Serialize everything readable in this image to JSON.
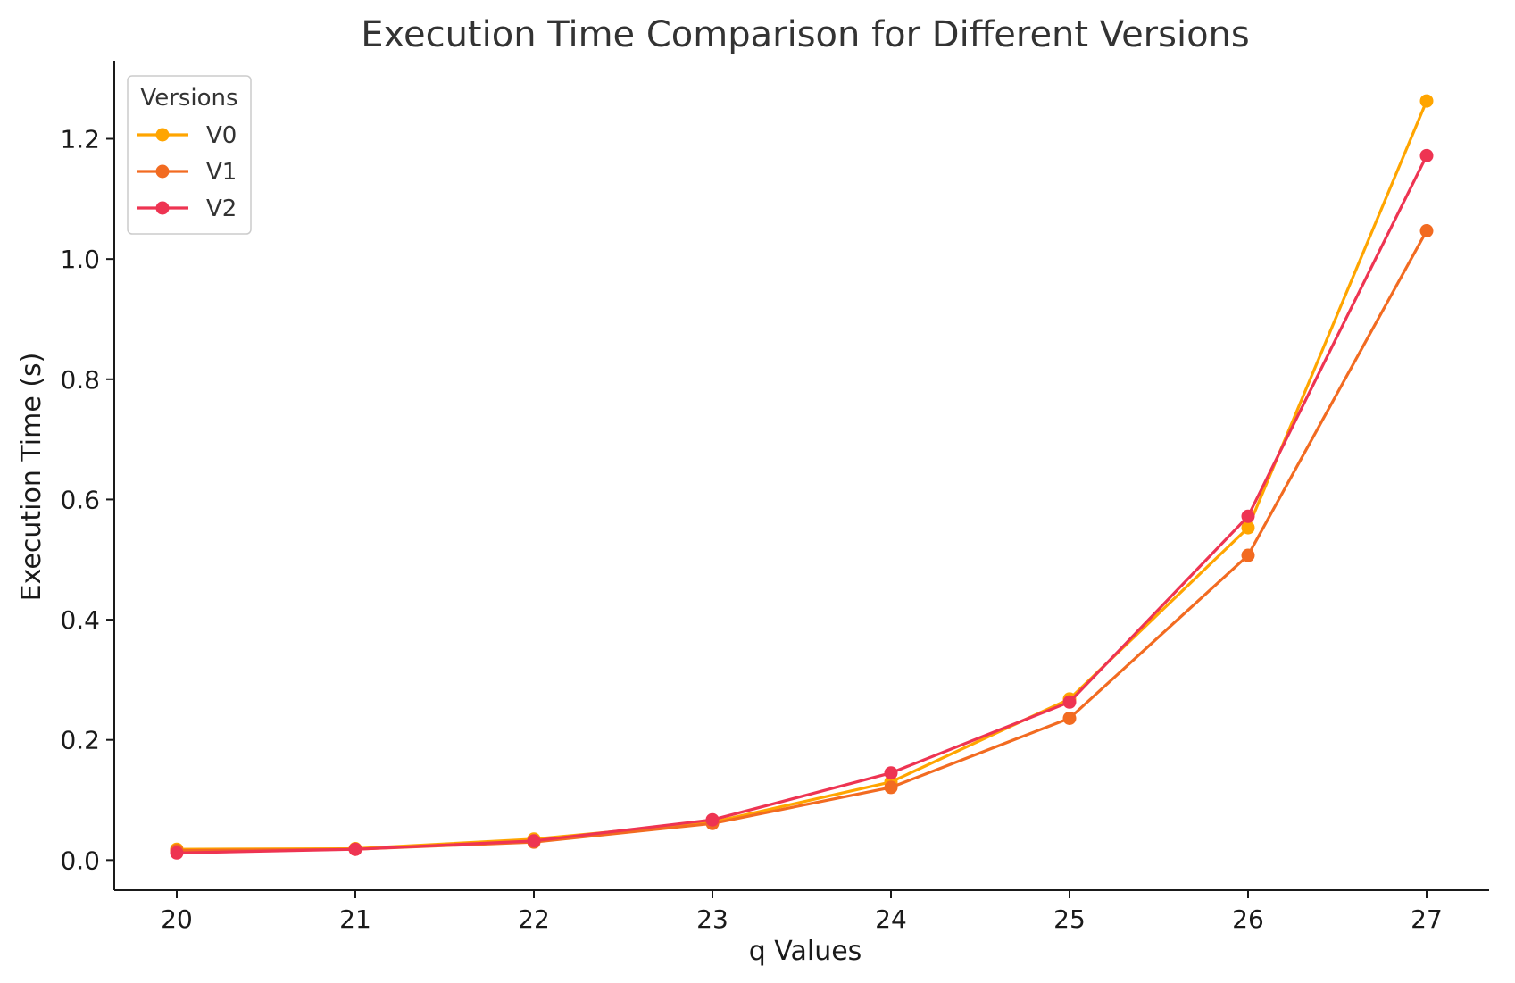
{
  "chart_data": {
    "type": "line",
    "title": "Execution Time Comparison for Different Versions",
    "xlabel": "q Values",
    "ylabel": "Execution Time (s)",
    "x": [
      20,
      21,
      22,
      23,
      24,
      25,
      26,
      27
    ],
    "x_ticks": [
      "20",
      "21",
      "22",
      "23",
      "24",
      "25",
      "26",
      "27"
    ],
    "y_ticks": [
      "0.0",
      "0.2",
      "0.4",
      "0.6",
      "0.8",
      "1.0",
      "1.2"
    ],
    "ylim": [
      -0.05,
      1.33
    ],
    "xlim": [
      19.65,
      27.35
    ],
    "grid": false,
    "legend": {
      "title": "Versions",
      "placement": "top-left"
    },
    "series": [
      {
        "name": "V0",
        "color": "#FFA500",
        "values": [
          0.018,
          0.019,
          0.035,
          0.063,
          0.13,
          0.268,
          0.553,
          1.263
        ]
      },
      {
        "name": "V1",
        "color": "#F26B21",
        "values": [
          0.016,
          0.018,
          0.03,
          0.061,
          0.121,
          0.236,
          0.507,
          1.047
        ]
      },
      {
        "name": "V2",
        "color": "#EE3452",
        "values": [
          0.012,
          0.018,
          0.032,
          0.067,
          0.145,
          0.263,
          0.572,
          1.172
        ]
      }
    ]
  }
}
